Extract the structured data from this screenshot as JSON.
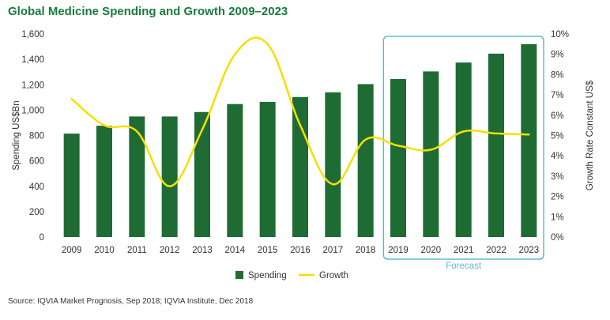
{
  "title": "Global Medicine Spending and Growth 2009–2023",
  "source": "Source: IQVIA Market Prognosis, Sep 2018; IQVIA Institute, Dec 2018",
  "chart_data": {
    "type": "bar",
    "title": "Global Medicine Spending and Growth 2009–2023",
    "categories": [
      "2009",
      "2010",
      "2011",
      "2012",
      "2013",
      "2014",
      "2015",
      "2016",
      "2017",
      "2018",
      "2019",
      "2020",
      "2021",
      "2022",
      "2023"
    ],
    "series": [
      {
        "name": "Spending",
        "type": "bar",
        "axis": "left",
        "color": "#1e6b34",
        "values": [
          815,
          877,
          950,
          950,
          985,
          1048,
          1065,
          1103,
          1140,
          1205,
          1245,
          1305,
          1375,
          1445,
          1520
        ]
      },
      {
        "name": "Growth",
        "type": "line",
        "axis": "right",
        "color": "#f5e000",
        "values": [
          6.8,
          5.5,
          5.2,
          2.5,
          5.3,
          9.0,
          9.5,
          5.5,
          2.6,
          4.8,
          4.5,
          4.3,
          5.2,
          5.1,
          5.05
        ]
      }
    ],
    "ylabel": "Spending US$Bn",
    "y2label": "Growth Rate Constant US$",
    "ylim": [
      0,
      1600
    ],
    "y2lim": [
      0,
      10
    ],
    "yticks": [
      "0",
      "200",
      "400",
      "600",
      "800",
      "1,000",
      "1,200",
      "1,400",
      "1,600"
    ],
    "y2ticks": [
      "0%",
      "1%",
      "2%",
      "3%",
      "4%",
      "5%",
      "6%",
      "7%",
      "8%",
      "9%",
      "10%"
    ],
    "forecast_label": "Forecast",
    "forecast_range": [
      "2019",
      "2023"
    ],
    "forecast_color": "#5bbcd6",
    "legend_position": "bottom",
    "grid": false
  }
}
